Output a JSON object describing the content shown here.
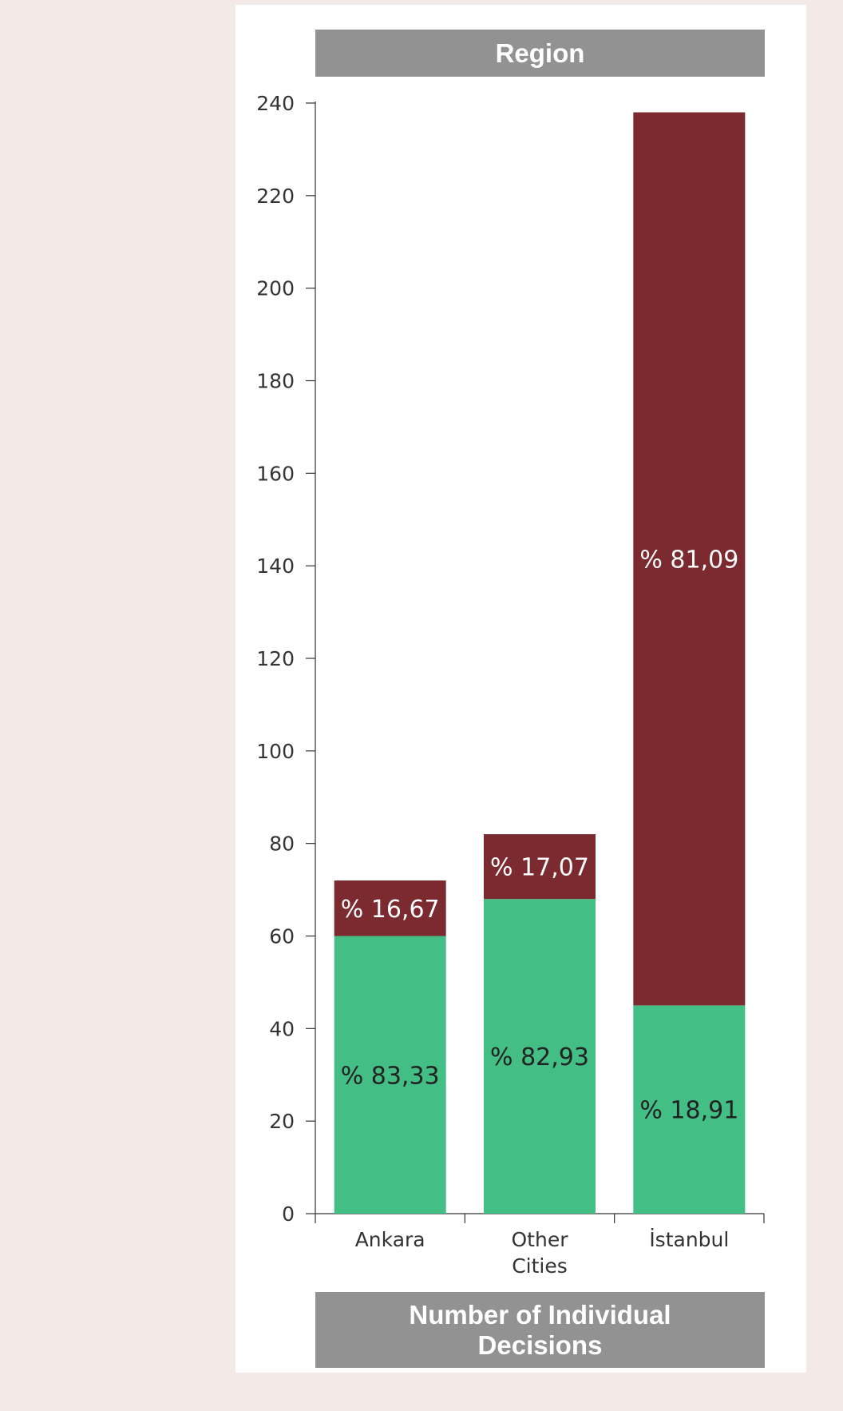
{
  "chart_data": {
    "type": "bar",
    "stacked": true,
    "title": "Region",
    "xlabel": "Number of Individual Decisions",
    "ylabel": "",
    "ylim": [
      0,
      240
    ],
    "yticks": [
      0,
      20,
      40,
      60,
      80,
      100,
      120,
      140,
      160,
      180,
      200,
      220,
      240
    ],
    "categories": [
      [
        "Ankara"
      ],
      [
        "Other",
        "Cities"
      ],
      [
        "İstanbul"
      ]
    ],
    "series": [
      {
        "color": "#43be85",
        "values": [
          60,
          68,
          45
        ],
        "labels": [
          "% 83,33",
          "% 82,93",
          "% 18,91"
        ]
      },
      {
        "color": "#7b2a30",
        "values": [
          12,
          14,
          193
        ],
        "labels": [
          "% 16,67",
          "% 17,07",
          "% 81,09"
        ]
      }
    ],
    "grid": false,
    "legend": "none"
  }
}
